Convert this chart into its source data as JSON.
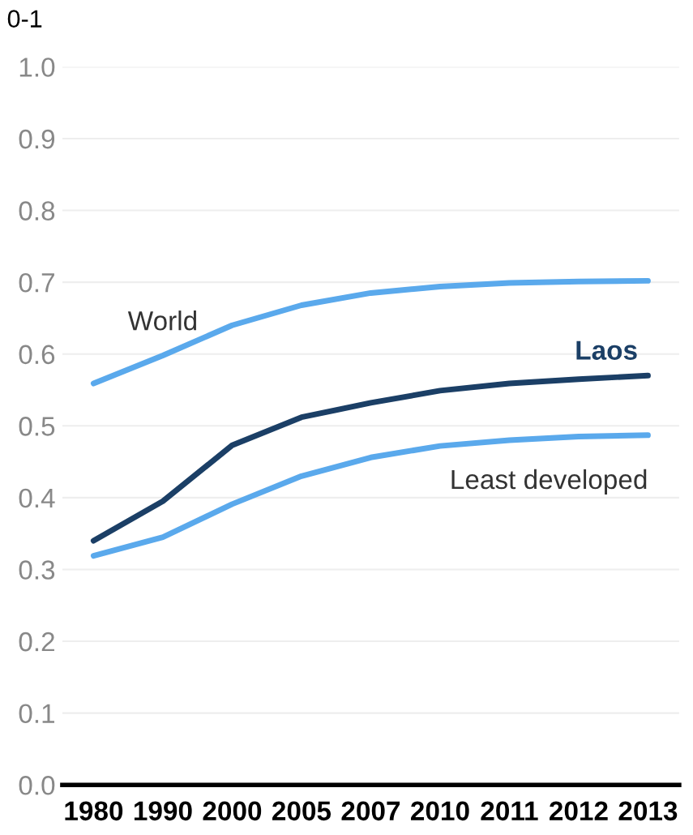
{
  "chart_data": {
    "type": "line",
    "ylabel": "0-1",
    "categories": [
      "1980",
      "1990",
      "2000",
      "2005",
      "2007",
      "2010",
      "2011",
      "2012",
      "2013"
    ],
    "series": [
      {
        "name": "World",
        "color": "#5aa9ec",
        "values": [
          0.559,
          0.598,
          0.64,
          0.668,
          0.685,
          0.694,
          0.699,
          0.701,
          0.702
        ]
      },
      {
        "name": "Laos",
        "color": "#1b3f66",
        "values": [
          0.34,
          0.395,
          0.473,
          0.512,
          0.532,
          0.549,
          0.559,
          0.565,
          0.57
        ]
      },
      {
        "name": "Least developed",
        "color": "#5aa9ec",
        "values": [
          0.319,
          0.345,
          0.391,
          0.43,
          0.456,
          0.472,
          0.48,
          0.485,
          0.487
        ]
      }
    ],
    "ylim": [
      0,
      1.0
    ],
    "yticks": [
      {
        "value": 0,
        "label": "0.0"
      },
      0.1,
      0.2,
      0.3,
      0.4,
      0.5,
      0.6,
      0.7,
      0.8,
      0.9,
      {
        "value": 1,
        "label": "1.0"
      }
    ],
    "grid": "y",
    "legend": false,
    "marker": "none",
    "line_style": "solid"
  }
}
